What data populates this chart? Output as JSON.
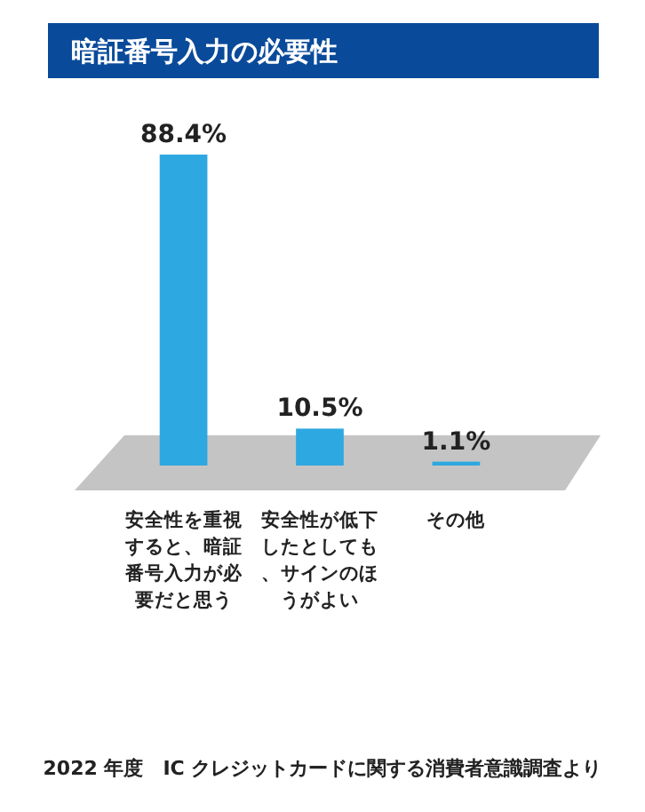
{
  "chart_data": {
    "type": "bar",
    "title": "暗証番号入力の必要性",
    "categories": [
      "安全性を重視すると、暗証番号入力が必要だと思う",
      "安全性が低下したとしても、サインのほうがよい",
      "その他"
    ],
    "values": [
      88.4,
      10.5,
      1.1
    ],
    "value_labels": [
      "88.4%",
      "10.5%",
      "1.1%"
    ],
    "color": "#2ea8e0",
    "annotations": [
      "2022 年度　IC クレジットカードに関する消費者意識調査より"
    ]
  }
}
